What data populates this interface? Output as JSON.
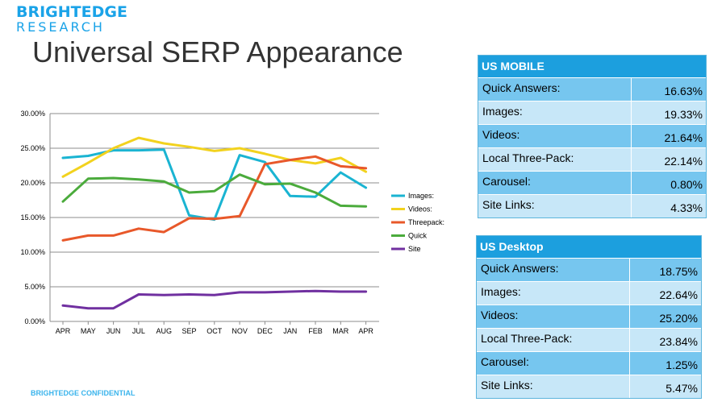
{
  "brand": {
    "line1": "BRIGHTEDGE",
    "line2": "RESEARCH"
  },
  "title": "Universal SERP Appearance",
  "footer": "BRIGHTEDGE CONFIDENTIAL",
  "colors": {
    "images": "#1ab4d2",
    "videos": "#f2d21e",
    "threepack": "#e8582a",
    "quick": "#4bab3c",
    "site": "#7030a0",
    "table_header": "#1c9fde",
    "table_dark": "#76c6ef",
    "table_light": "#c7e7f8"
  },
  "chart_data": {
    "type": "line",
    "categories": [
      "APR",
      "MAY",
      "JUN",
      "JUL",
      "AUG",
      "SEP",
      "OCT",
      "NOV",
      "DEC",
      "JAN",
      "FEB",
      "MAR",
      "APR"
    ],
    "y_ticks": [
      "0.00%",
      "5.00%",
      "10.00%",
      "15.00%",
      "20.00%",
      "25.00%",
      "30.00%"
    ],
    "ylim": [
      0,
      30
    ],
    "grid": true,
    "legend_position": "right",
    "series": [
      {
        "name": "Images:",
        "color": "#1ab4d2",
        "values": [
          23.6,
          23.9,
          24.7,
          24.7,
          24.8,
          15.3,
          14.7,
          24.0,
          23.0,
          18.1,
          18.0,
          21.5,
          19.3
        ]
      },
      {
        "name": "Videos:",
        "color": "#f2d21e",
        "values": [
          20.9,
          22.9,
          25.0,
          26.5,
          25.7,
          25.2,
          24.6,
          25.0,
          24.2,
          23.3,
          22.8,
          23.6,
          21.6
        ]
      },
      {
        "name": "Threepack:",
        "color": "#e8582a",
        "values": [
          11.7,
          12.4,
          12.4,
          13.4,
          12.9,
          14.9,
          14.8,
          15.2,
          22.7,
          23.3,
          23.8,
          22.4,
          22.1
        ]
      },
      {
        "name": "Quick",
        "color": "#4bab3c",
        "values": [
          17.3,
          20.6,
          20.7,
          20.5,
          20.2,
          18.6,
          18.8,
          21.2,
          19.8,
          19.9,
          18.6,
          16.7,
          16.6
        ]
      },
      {
        "name": "Site",
        "color": "#7030a0",
        "values": [
          2.3,
          1.9,
          1.9,
          3.9,
          3.8,
          3.9,
          3.8,
          4.2,
          4.2,
          4.3,
          4.4,
          4.3,
          4.3
        ]
      }
    ]
  },
  "tables": [
    {
      "title": "US MOBILE",
      "rows": [
        {
          "label": "Quick Answers:",
          "value": "16.63%"
        },
        {
          "label": "Images:",
          "value": "19.33%"
        },
        {
          "label": "Videos:",
          "value": "21.64%"
        },
        {
          "label": "Local Three-Pack:",
          "value": "22.14%"
        },
        {
          "label": "Carousel:",
          "value": "0.80%"
        },
        {
          "label": "Site Links:",
          "value": "4.33%"
        }
      ]
    },
    {
      "title": "US Desktop",
      "rows": [
        {
          "label": "Quick Answers:",
          "value": "18.75%"
        },
        {
          "label": "Images:",
          "value": "22.64%"
        },
        {
          "label": "Videos:",
          "value": "25.20%"
        },
        {
          "label": "Local Three-Pack:",
          "value": "23.84%"
        },
        {
          "label": "Carousel:",
          "value": "1.25%"
        },
        {
          "label": "Site Links:",
          "value": "5.47%"
        }
      ]
    }
  ]
}
